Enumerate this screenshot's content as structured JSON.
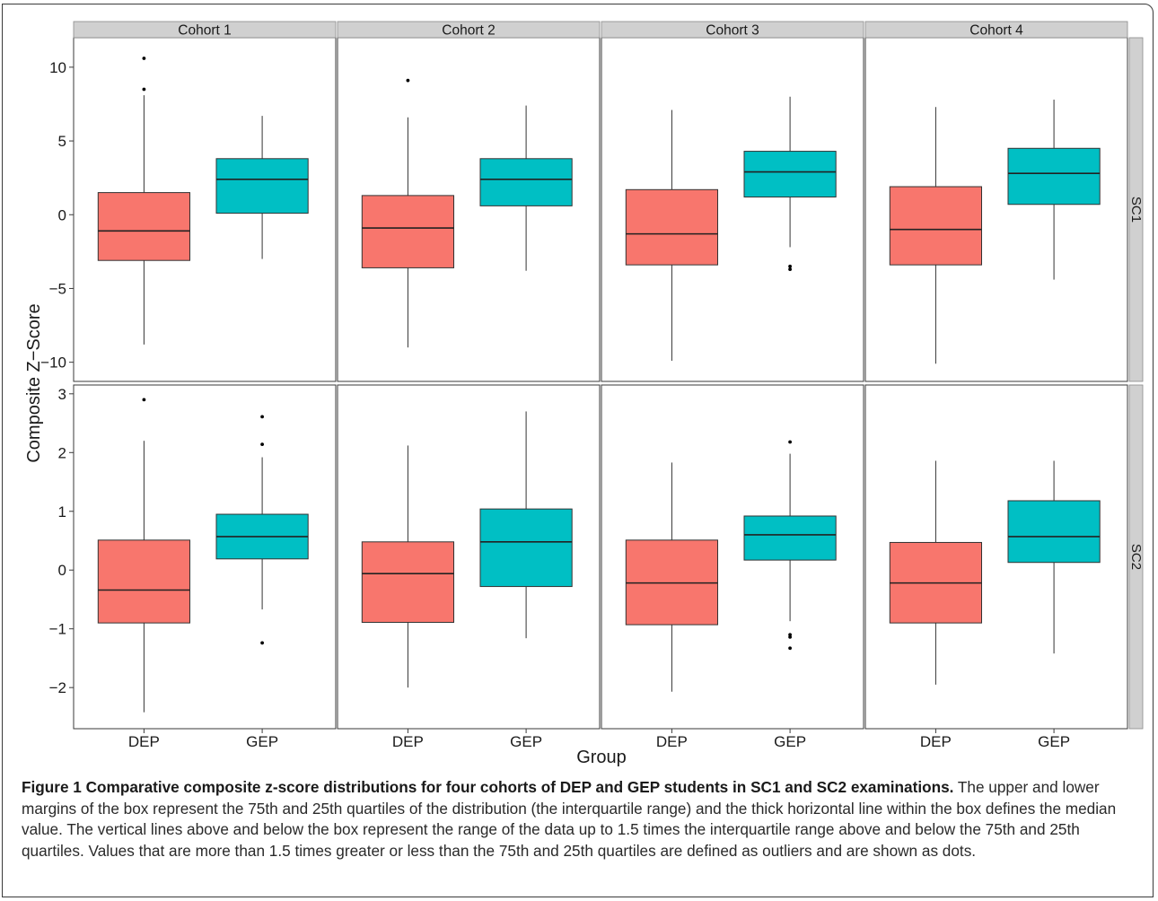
{
  "colors": {
    "dep": "#F8766D",
    "gep": "#00BFC4",
    "strip": "#D0D0D0",
    "border": "#3a3a3a"
  },
  "chart_data": {
    "type": "boxplot",
    "facet_columns": [
      "Cohort 1",
      "Cohort 2",
      "Cohort 3",
      "Cohort 4"
    ],
    "facet_rows": [
      "SC1",
      "SC2"
    ],
    "categories": [
      "DEP",
      "GEP"
    ],
    "xlabel": "Group",
    "ylabel": "Composite Z−Score",
    "rows": [
      {
        "name": "SC1",
        "ylim": [
          -11.3,
          12.0
        ],
        "ticks": [
          -10,
          -5,
          0,
          5,
          10
        ],
        "tick_labels": [
          "−10",
          "−5",
          "0",
          "5",
          "10"
        ],
        "panels": [
          {
            "cohort": "Cohort 1",
            "boxes": [
              {
                "group": "DEP",
                "lower": -8.8,
                "q1": -3.1,
                "median": -1.1,
                "q3": 1.5,
                "upper": 8.1,
                "outliers": [
                  8.5,
                  10.6
                ]
              },
              {
                "group": "GEP",
                "lower": -3.0,
                "q1": 0.1,
                "median": 2.4,
                "q3": 3.8,
                "upper": 6.7,
                "outliers": []
              }
            ]
          },
          {
            "cohort": "Cohort 2",
            "boxes": [
              {
                "group": "DEP",
                "lower": -9.0,
                "q1": -3.6,
                "median": -0.9,
                "q3": 1.3,
                "upper": 6.6,
                "outliers": [
                  9.1
                ]
              },
              {
                "group": "GEP",
                "lower": -3.8,
                "q1": 0.6,
                "median": 2.4,
                "q3": 3.8,
                "upper": 7.4,
                "outliers": []
              }
            ]
          },
          {
            "cohort": "Cohort 3",
            "boxes": [
              {
                "group": "DEP",
                "lower": -9.9,
                "q1": -3.4,
                "median": -1.3,
                "q3": 1.7,
                "upper": 7.1,
                "outliers": []
              },
              {
                "group": "GEP",
                "lower": -2.2,
                "q1": 1.2,
                "median": 2.9,
                "q3": 4.3,
                "upper": 8.0,
                "outliers": [
                  -3.5,
                  -3.7
                ]
              }
            ]
          },
          {
            "cohort": "Cohort 4",
            "boxes": [
              {
                "group": "DEP",
                "lower": -10.1,
                "q1": -3.4,
                "median": -1.0,
                "q3": 1.9,
                "upper": 7.3,
                "outliers": []
              },
              {
                "group": "GEP",
                "lower": -4.4,
                "q1": 0.7,
                "median": 2.8,
                "q3": 4.5,
                "upper": 7.8,
                "outliers": []
              }
            ]
          }
        ]
      },
      {
        "name": "SC2",
        "ylim": [
          -2.7,
          3.15
        ],
        "ticks": [
          -2,
          -1,
          0,
          1,
          2,
          3
        ],
        "tick_labels": [
          "−2",
          "−1",
          "0",
          "1",
          "2",
          "3"
        ],
        "panels": [
          {
            "cohort": "Cohort 1",
            "boxes": [
              {
                "group": "DEP",
                "lower": -2.42,
                "q1": -0.9,
                "median": -0.34,
                "q3": 0.51,
                "upper": 2.2,
                "outliers": [
                  2.9
                ]
              },
              {
                "group": "GEP",
                "lower": -0.67,
                "q1": 0.19,
                "median": 0.57,
                "q3": 0.95,
                "upper": 1.92,
                "outliers": [
                  -1.24,
                  2.14,
                  2.61
                ]
              }
            ]
          },
          {
            "cohort": "Cohort 2",
            "boxes": [
              {
                "group": "DEP",
                "lower": -2.0,
                "q1": -0.89,
                "median": -0.06,
                "q3": 0.48,
                "upper": 2.12,
                "outliers": []
              },
              {
                "group": "GEP",
                "lower": -1.16,
                "q1": -0.28,
                "median": 0.48,
                "q3": 1.04,
                "upper": 2.7,
                "outliers": []
              }
            ]
          },
          {
            "cohort": "Cohort 3",
            "boxes": [
              {
                "group": "DEP",
                "lower": -2.07,
                "q1": -0.93,
                "median": -0.22,
                "q3": 0.51,
                "upper": 1.83,
                "outliers": []
              },
              {
                "group": "GEP",
                "lower": -0.87,
                "q1": 0.17,
                "median": 0.6,
                "q3": 0.92,
                "upper": 1.98,
                "outliers": [
                  -1.1,
                  -1.14,
                  -1.33,
                  2.18
                ]
              }
            ]
          },
          {
            "cohort": "Cohort 4",
            "boxes": [
              {
                "group": "DEP",
                "lower": -1.95,
                "q1": -0.9,
                "median": -0.22,
                "q3": 0.47,
                "upper": 1.86,
                "outliers": []
              },
              {
                "group": "GEP",
                "lower": -1.42,
                "q1": 0.13,
                "median": 0.57,
                "q3": 1.18,
                "upper": 1.86,
                "outliers": []
              }
            ]
          }
        ]
      }
    ]
  },
  "caption": {
    "label": "Figure 1 Comparative composite z-score distributions for four cohorts of DEP and GEP students in SC1 and SC2 examinations.",
    "text": " The upper and lower margins of the box represent the 75th and 25th quartiles of the distribution (the interquartile range) and the thick horizontal line within the box defines the median value. The vertical lines above and below the box represent the range of the data up to 1.5 times the interquartile range above and below the 75th and 25th quartiles. Values that are more than 1.5 times greater or less than the 75th and 25th quartiles are defined as outliers and are shown as dots."
  }
}
